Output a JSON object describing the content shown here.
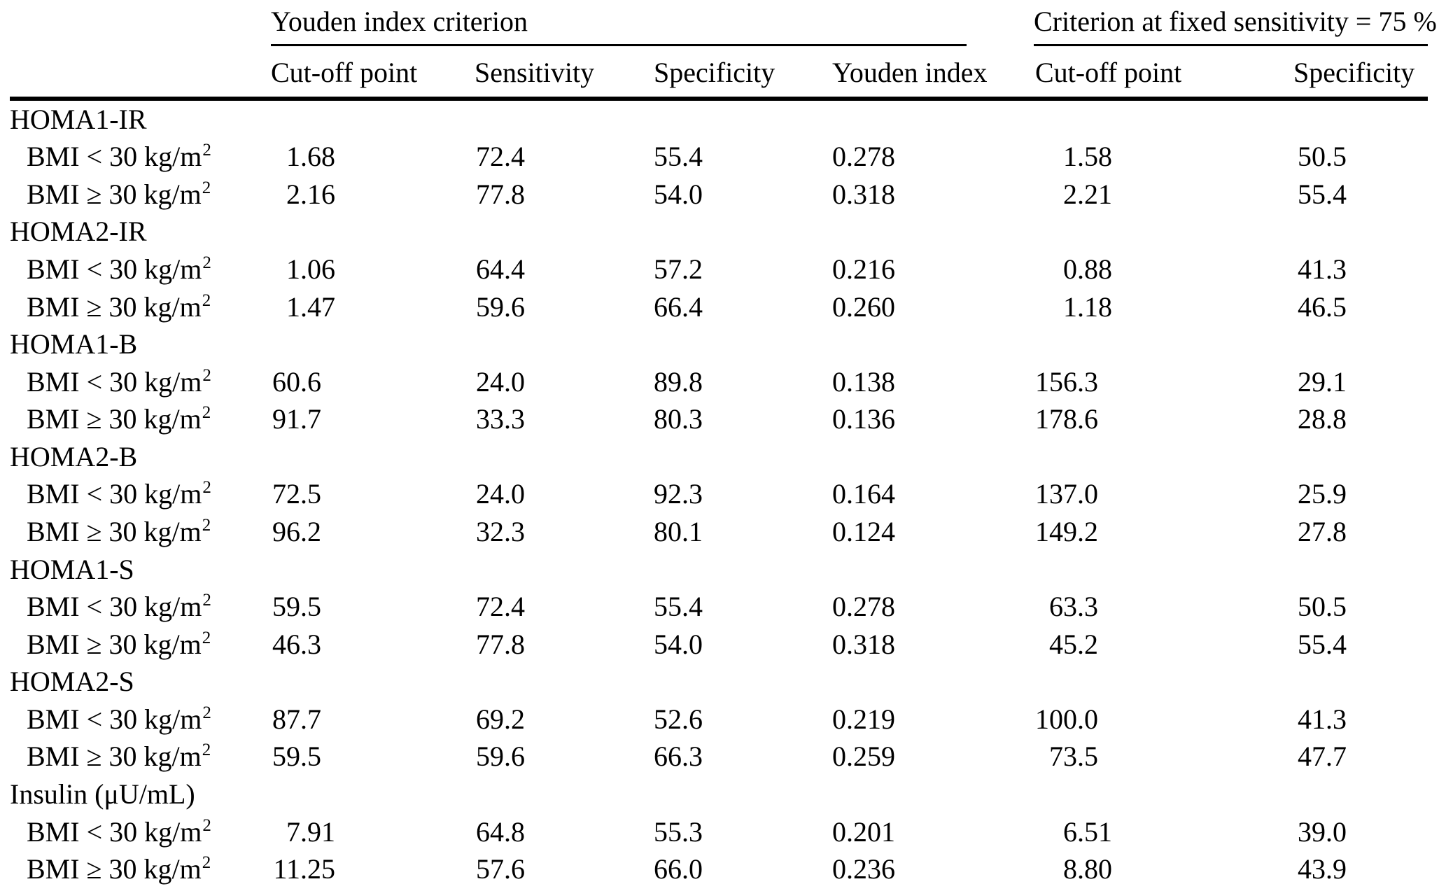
{
  "table": {
    "groups_header": [
      {
        "label": "Youden index criterion"
      },
      {
        "label": "Criterion at fixed sensitivity = 75 %"
      }
    ],
    "columns": [
      "Cut-off point",
      "Sensitivity",
      "Specificity",
      "Youden index",
      "Cut-off point",
      "Specificity"
    ],
    "row_groups": [
      {
        "name": "HOMA1-IR",
        "rows": [
          {
            "label": "BMI < 30 kg/m",
            "sup": "2",
            "values": [
              "1.68",
              "72.4",
              "55.4",
              "0.278",
              "1.58",
              "50.5"
            ]
          },
          {
            "label": "BMI ≥ 30 kg/m",
            "sup": "2",
            "values": [
              "2.16",
              "77.8",
              "54.0",
              "0.318",
              "2.21",
              "55.4"
            ]
          }
        ]
      },
      {
        "name": "HOMA2-IR",
        "rows": [
          {
            "label": "BMI < 30 kg/m",
            "sup": "2",
            "values": [
              "1.06",
              "64.4",
              "57.2",
              "0.216",
              "0.88",
              "41.3"
            ]
          },
          {
            "label": "BMI ≥ 30 kg/m",
            "sup": "2",
            "values": [
              "1.47",
              "59.6",
              "66.4",
              "0.260",
              "1.18",
              "46.5"
            ]
          }
        ]
      },
      {
        "name": "HOMA1-B",
        "rows": [
          {
            "label": "BMI < 30 kg/m",
            "sup": "2",
            "values": [
              "60.6",
              "24.0",
              "89.8",
              "0.138",
              "156.3",
              "29.1"
            ]
          },
          {
            "label": "BMI ≥ 30 kg/m",
            "sup": "2",
            "values": [
              "91.7",
              "33.3",
              "80.3",
              "0.136",
              "178.6",
              "28.8"
            ]
          }
        ]
      },
      {
        "name": "HOMA2-B",
        "rows": [
          {
            "label": "BMI < 30 kg/m",
            "sup": "2",
            "values": [
              "72.5",
              "24.0",
              "92.3",
              "0.164",
              "137.0",
              "25.9"
            ]
          },
          {
            "label": "BMI ≥ 30 kg/m",
            "sup": "2",
            "values": [
              "96.2",
              "32.3",
              "80.1",
              "0.124",
              "149.2",
              "27.8"
            ]
          }
        ]
      },
      {
        "name": "HOMA1-S",
        "rows": [
          {
            "label": "BMI < 30 kg/m",
            "sup": "2",
            "values": [
              "59.5",
              "72.4",
              "55.4",
              "0.278",
              "63.3",
              "50.5"
            ]
          },
          {
            "label": "BMI ≥ 30 kg/m",
            "sup": "2",
            "values": [
              "46.3",
              "77.8",
              "54.0",
              "0.318",
              "45.2",
              "55.4"
            ]
          }
        ]
      },
      {
        "name": "HOMA2-S",
        "rows": [
          {
            "label": "BMI < 30 kg/m",
            "sup": "2",
            "values": [
              "87.7",
              "69.2",
              "52.6",
              "0.219",
              "100.0",
              "41.3"
            ]
          },
          {
            "label": "BMI ≥ 30 kg/m",
            "sup": "2",
            "values": [
              "59.5",
              "59.6",
              "66.3",
              "0.259",
              "73.5",
              "47.7"
            ]
          }
        ]
      },
      {
        "name": "Insulin (μU/mL)",
        "rows": [
          {
            "label": "BMI < 30 kg/m",
            "sup": "2",
            "values": [
              "7.91",
              "64.8",
              "55.3",
              "0.201",
              "6.51",
              "39.0"
            ]
          },
          {
            "label": "BMI ≥ 30 kg/m",
            "sup": "2",
            "values": [
              "11.25",
              "57.6",
              "66.0",
              "0.236",
              "8.80",
              "43.9"
            ]
          }
        ]
      }
    ]
  }
}
